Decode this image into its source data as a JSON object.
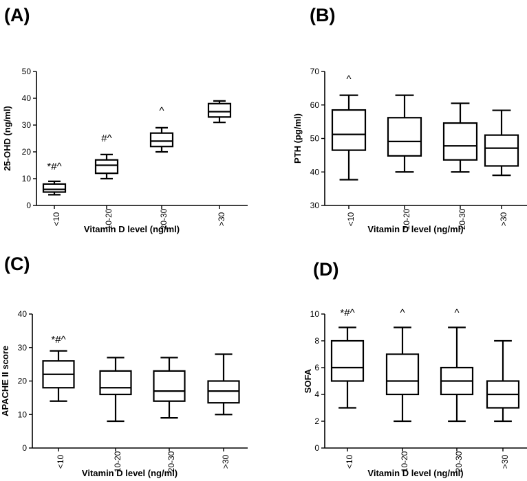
{
  "chart_data": [
    {
      "panel_label": "(A)",
      "type": "boxplot",
      "categories": [
        "<10",
        "10-20",
        "20-30",
        ">30"
      ],
      "xlabel": "Vitamin D level (ng/ml)",
      "ylabel": "25-OHD (ng/ml)",
      "ylim": [
        0,
        50
      ],
      "yticks": [
        "0",
        "10",
        "20",
        "30",
        "40",
        "50"
      ],
      "boxes": [
        {
          "min": 4,
          "q1": 5,
          "median": 6,
          "q3": 8,
          "max": 9
        },
        {
          "min": 10,
          "q1": 12,
          "median": 15,
          "q3": 17,
          "max": 19
        },
        {
          "min": 20,
          "q1": 22,
          "median": 24,
          "q3": 27,
          "max": 29
        },
        {
          "min": 31,
          "q1": 33,
          "median": 35,
          "q3": 38,
          "max": 39
        }
      ],
      "annotations": [
        "*#^",
        "#^",
        "^",
        ""
      ]
    },
    {
      "panel_label": "(B)",
      "type": "boxplot",
      "categories": [
        "<10",
        "10-20",
        "20-30",
        ">30"
      ],
      "xlabel": "Vitamin D level (ng/ml)",
      "ylabel": "PTH (pg/ml)",
      "ylim": [
        30,
        70
      ],
      "yticks": [
        "30",
        "40",
        "50",
        "60",
        "70"
      ],
      "boxes": [
        {
          "min": 37.7,
          "q1": 46.5,
          "median": 51.2,
          "q3": 58.5,
          "max": 62.9
        },
        {
          "min": 40.0,
          "q1": 44.8,
          "median": 49.1,
          "q3": 56.2,
          "max": 62.9
        },
        {
          "min": 40.0,
          "q1": 43.6,
          "median": 47.8,
          "q3": 54.6,
          "max": 60.5
        },
        {
          "min": 39.0,
          "q1": 41.8,
          "median": 47.1,
          "q3": 51.0,
          "max": 58.4
        }
      ],
      "annotations": [
        "^",
        "",
        "",
        ""
      ]
    },
    {
      "panel_label": "(C)",
      "type": "boxplot",
      "categories": [
        "<10",
        "10-20",
        "20-30",
        ">30"
      ],
      "xlabel": "Vitamin D level (ng/ml)",
      "ylabel": "APACHE II score",
      "ylim": [
        0,
        40
      ],
      "yticks": [
        "0",
        "10",
        "20",
        "30",
        "40"
      ],
      "boxes": [
        {
          "min": 14,
          "q1": 18,
          "median": 22,
          "q3": 26,
          "max": 29
        },
        {
          "min": 8,
          "q1": 16,
          "median": 18,
          "q3": 23,
          "max": 27
        },
        {
          "min": 9,
          "q1": 14,
          "median": 17,
          "q3": 23,
          "max": 27
        },
        {
          "min": 10,
          "q1": 13.5,
          "median": 17,
          "q3": 20,
          "max": 28
        }
      ],
      "annotations": [
        "*#^",
        "",
        "",
        ""
      ]
    },
    {
      "panel_label": "(D)",
      "type": "boxplot",
      "categories": [
        "<10",
        "10-20",
        "20-30",
        ">30"
      ],
      "xlabel": "Vitamin D level (ng/ml)",
      "ylabel": "SOFA",
      "ylim": [
        0,
        10
      ],
      "yticks": [
        "0",
        "2",
        "4",
        "6",
        "8",
        "10"
      ],
      "boxes": [
        {
          "min": 3,
          "q1": 5,
          "median": 6,
          "q3": 8,
          "max": 9
        },
        {
          "min": 2,
          "q1": 4,
          "median": 5,
          "q3": 7,
          "max": 9
        },
        {
          "min": 2,
          "q1": 4,
          "median": 5,
          "q3": 6,
          "max": 9
        },
        {
          "min": 2,
          "q1": 3,
          "median": 4,
          "q3": 5,
          "max": 8
        }
      ],
      "annotations": [
        "*#^",
        "^",
        "^",
        ""
      ]
    }
  ]
}
